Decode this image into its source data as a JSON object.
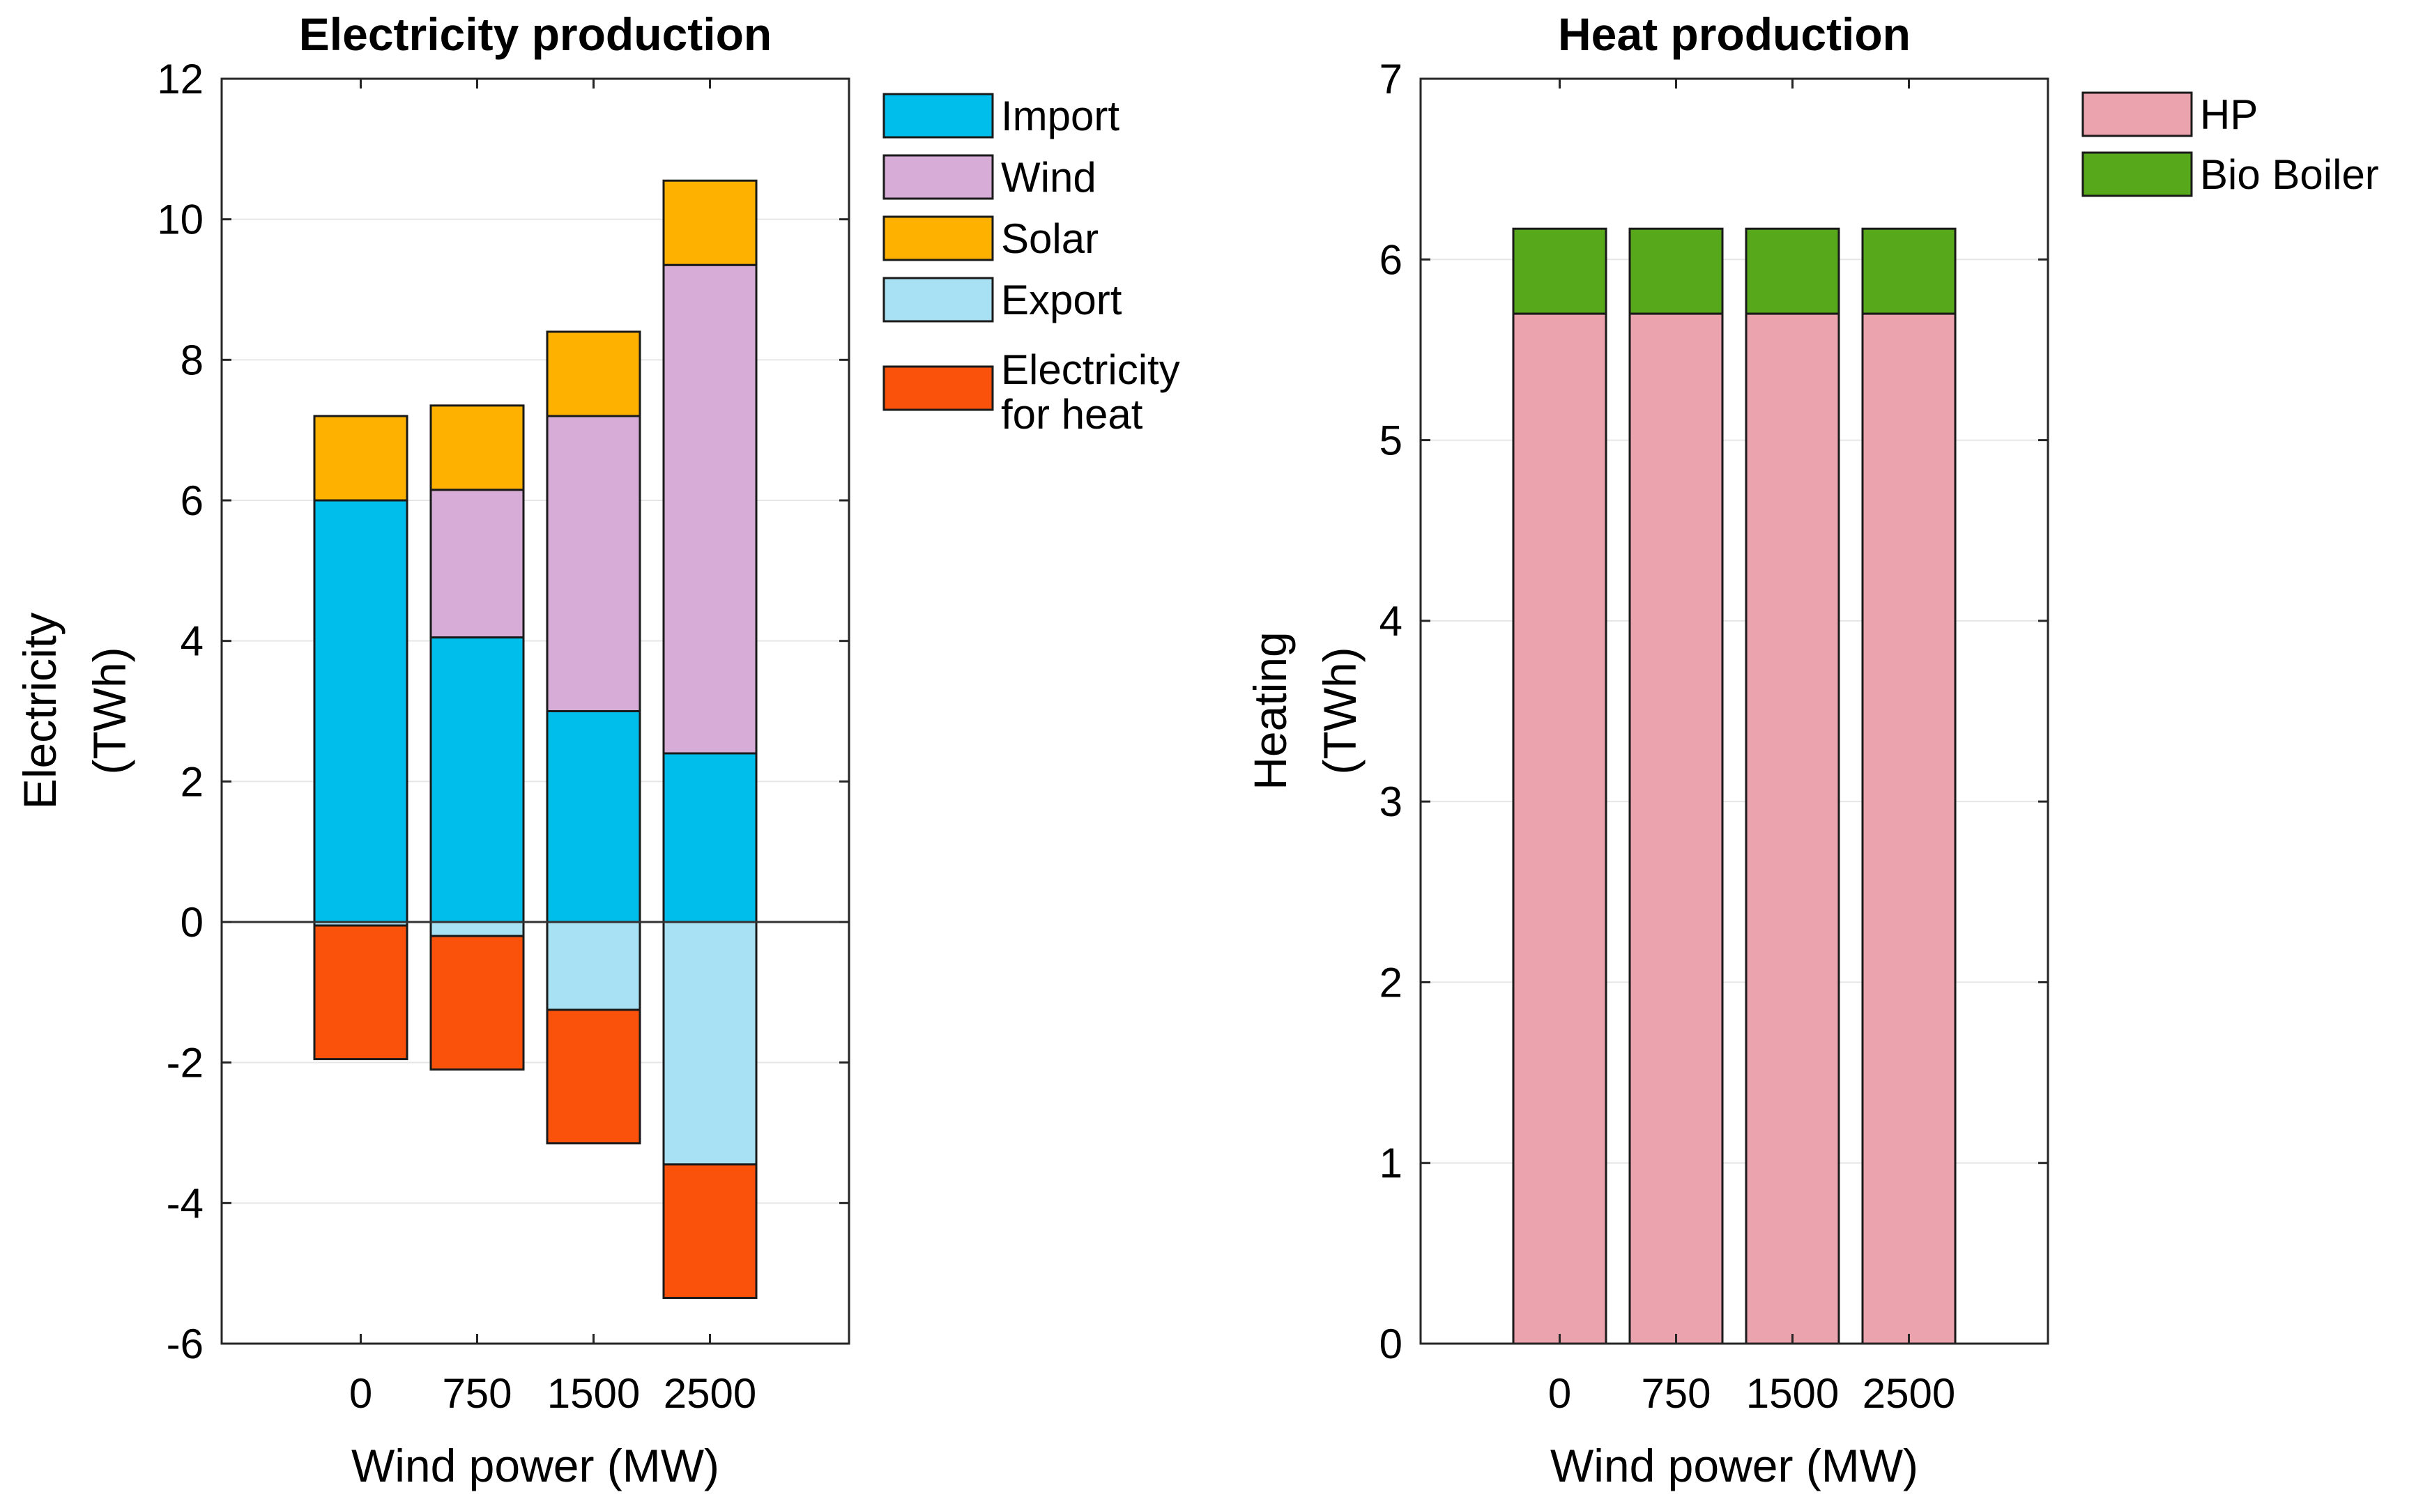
{
  "colors": {
    "import": "#00BEEB",
    "wind": "#D7ADD7",
    "solar": "#FFB100",
    "export": "#A8E1F4",
    "elheat": "#FA520A",
    "hp": "#EBA3AE",
    "bio": "#57A81B"
  },
  "chart_data": [
    {
      "type": "bar",
      "stacked": true,
      "title": "Electricity production",
      "xlabel": "Wind power (MW)",
      "ylabel_line1": "Electricity",
      "ylabel_line2": "(TWh)",
      "categories": [
        "0",
        "750",
        "1500",
        "2500"
      ],
      "ylim": [
        -6,
        12
      ],
      "yticks": [
        -6,
        -4,
        -2,
        0,
        2,
        4,
        6,
        8,
        10,
        12
      ],
      "ytick_labels": [
        "-6",
        "-4",
        "-2",
        "0",
        "2",
        "4",
        "6",
        "8",
        "10",
        "12"
      ],
      "grid": true,
      "series": [
        {
          "name": "Import",
          "key": "import",
          "values": [
            6.0,
            4.05,
            3.0,
            2.4
          ]
        },
        {
          "name": "Wind",
          "key": "wind",
          "values": [
            0.0,
            2.1,
            4.2,
            6.95
          ]
        },
        {
          "name": "Solar",
          "key": "solar",
          "values": [
            1.2,
            1.2,
            1.2,
            1.2
          ]
        },
        {
          "name": "Export",
          "key": "export",
          "values": [
            -0.05,
            -0.2,
            -1.25,
            -3.45
          ]
        },
        {
          "name": "Electricity for heat",
          "key": "elheat",
          "values": [
            -1.9,
            -1.9,
            -1.9,
            -1.9
          ]
        }
      ],
      "legend": {
        "position": "right-outside-top",
        "entries": [
          {
            "key": "import",
            "lines": [
              "Import"
            ]
          },
          {
            "key": "wind",
            "lines": [
              "Wind"
            ]
          },
          {
            "key": "solar",
            "lines": [
              "Solar"
            ]
          },
          {
            "key": "export",
            "lines": [
              "Export"
            ]
          },
          {
            "key": "elheat",
            "lines": [
              "Electricity",
              "for heat"
            ]
          }
        ]
      }
    },
    {
      "type": "bar",
      "stacked": true,
      "title": "Heat production",
      "xlabel": "Wind power (MW)",
      "ylabel_line1": "Heating",
      "ylabel_line2": "(TWh)",
      "categories": [
        "0",
        "750",
        "1500",
        "2500"
      ],
      "ylim": [
        0,
        7
      ],
      "yticks": [
        0,
        1,
        2,
        3,
        4,
        5,
        6,
        7
      ],
      "ytick_labels": [
        "0",
        "1",
        "2",
        "3",
        "4",
        "5",
        "6",
        "7"
      ],
      "grid": true,
      "series": [
        {
          "name": "HP",
          "key": "hp",
          "values": [
            5.7,
            5.7,
            5.7,
            5.7
          ]
        },
        {
          "name": "Bio Boiler",
          "key": "bio",
          "values": [
            0.47,
            0.47,
            0.47,
            0.47
          ]
        }
      ],
      "legend": {
        "position": "right-outside-top",
        "entries": [
          {
            "key": "hp",
            "lines": [
              "HP"
            ]
          },
          {
            "key": "bio",
            "lines": [
              "Bio Boiler"
            ]
          }
        ]
      }
    }
  ]
}
